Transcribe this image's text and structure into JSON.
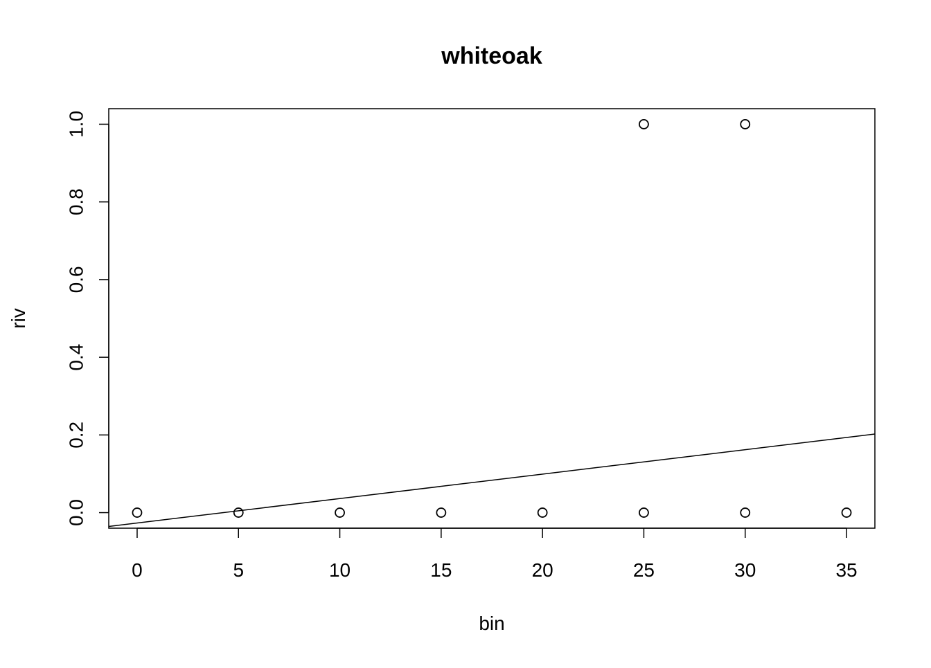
{
  "chart_data": {
    "type": "scatter",
    "title": "whiteoak",
    "xlabel": "bin",
    "ylabel": "riv",
    "x_ticks": [
      0,
      5,
      10,
      15,
      20,
      25,
      30,
      35
    ],
    "y_ticks": [
      0.0,
      0.2,
      0.4,
      0.6,
      0.8,
      1.0
    ],
    "x_tick_labels": [
      "0",
      "5",
      "10",
      "15",
      "20",
      "25",
      "30",
      "35"
    ],
    "y_tick_labels": [
      "0.0",
      "0.2",
      "0.4",
      "0.6",
      "0.8",
      "1.0"
    ],
    "xlim": [
      -1.4,
      36.4
    ],
    "ylim": [
      -0.04,
      1.04
    ],
    "grid": false,
    "legend": "none",
    "series": [
      {
        "type": "points",
        "marker": "open-circle",
        "points": [
          {
            "x": 0,
            "y": 0
          },
          {
            "x": 5,
            "y": 0
          },
          {
            "x": 10,
            "y": 0
          },
          {
            "x": 15,
            "y": 0
          },
          {
            "x": 20,
            "y": 0
          },
          {
            "x": 25,
            "y": 0
          },
          {
            "x": 25,
            "y": 1
          },
          {
            "x": 30,
            "y": 0
          },
          {
            "x": 30,
            "y": 1
          },
          {
            "x": 35,
            "y": 0
          }
        ]
      },
      {
        "type": "line",
        "style": "solid",
        "intercept": -0.02667,
        "slope": 0.00629
      }
    ],
    "colors": {
      "foreground": "#000000",
      "background": "#ffffff"
    }
  }
}
